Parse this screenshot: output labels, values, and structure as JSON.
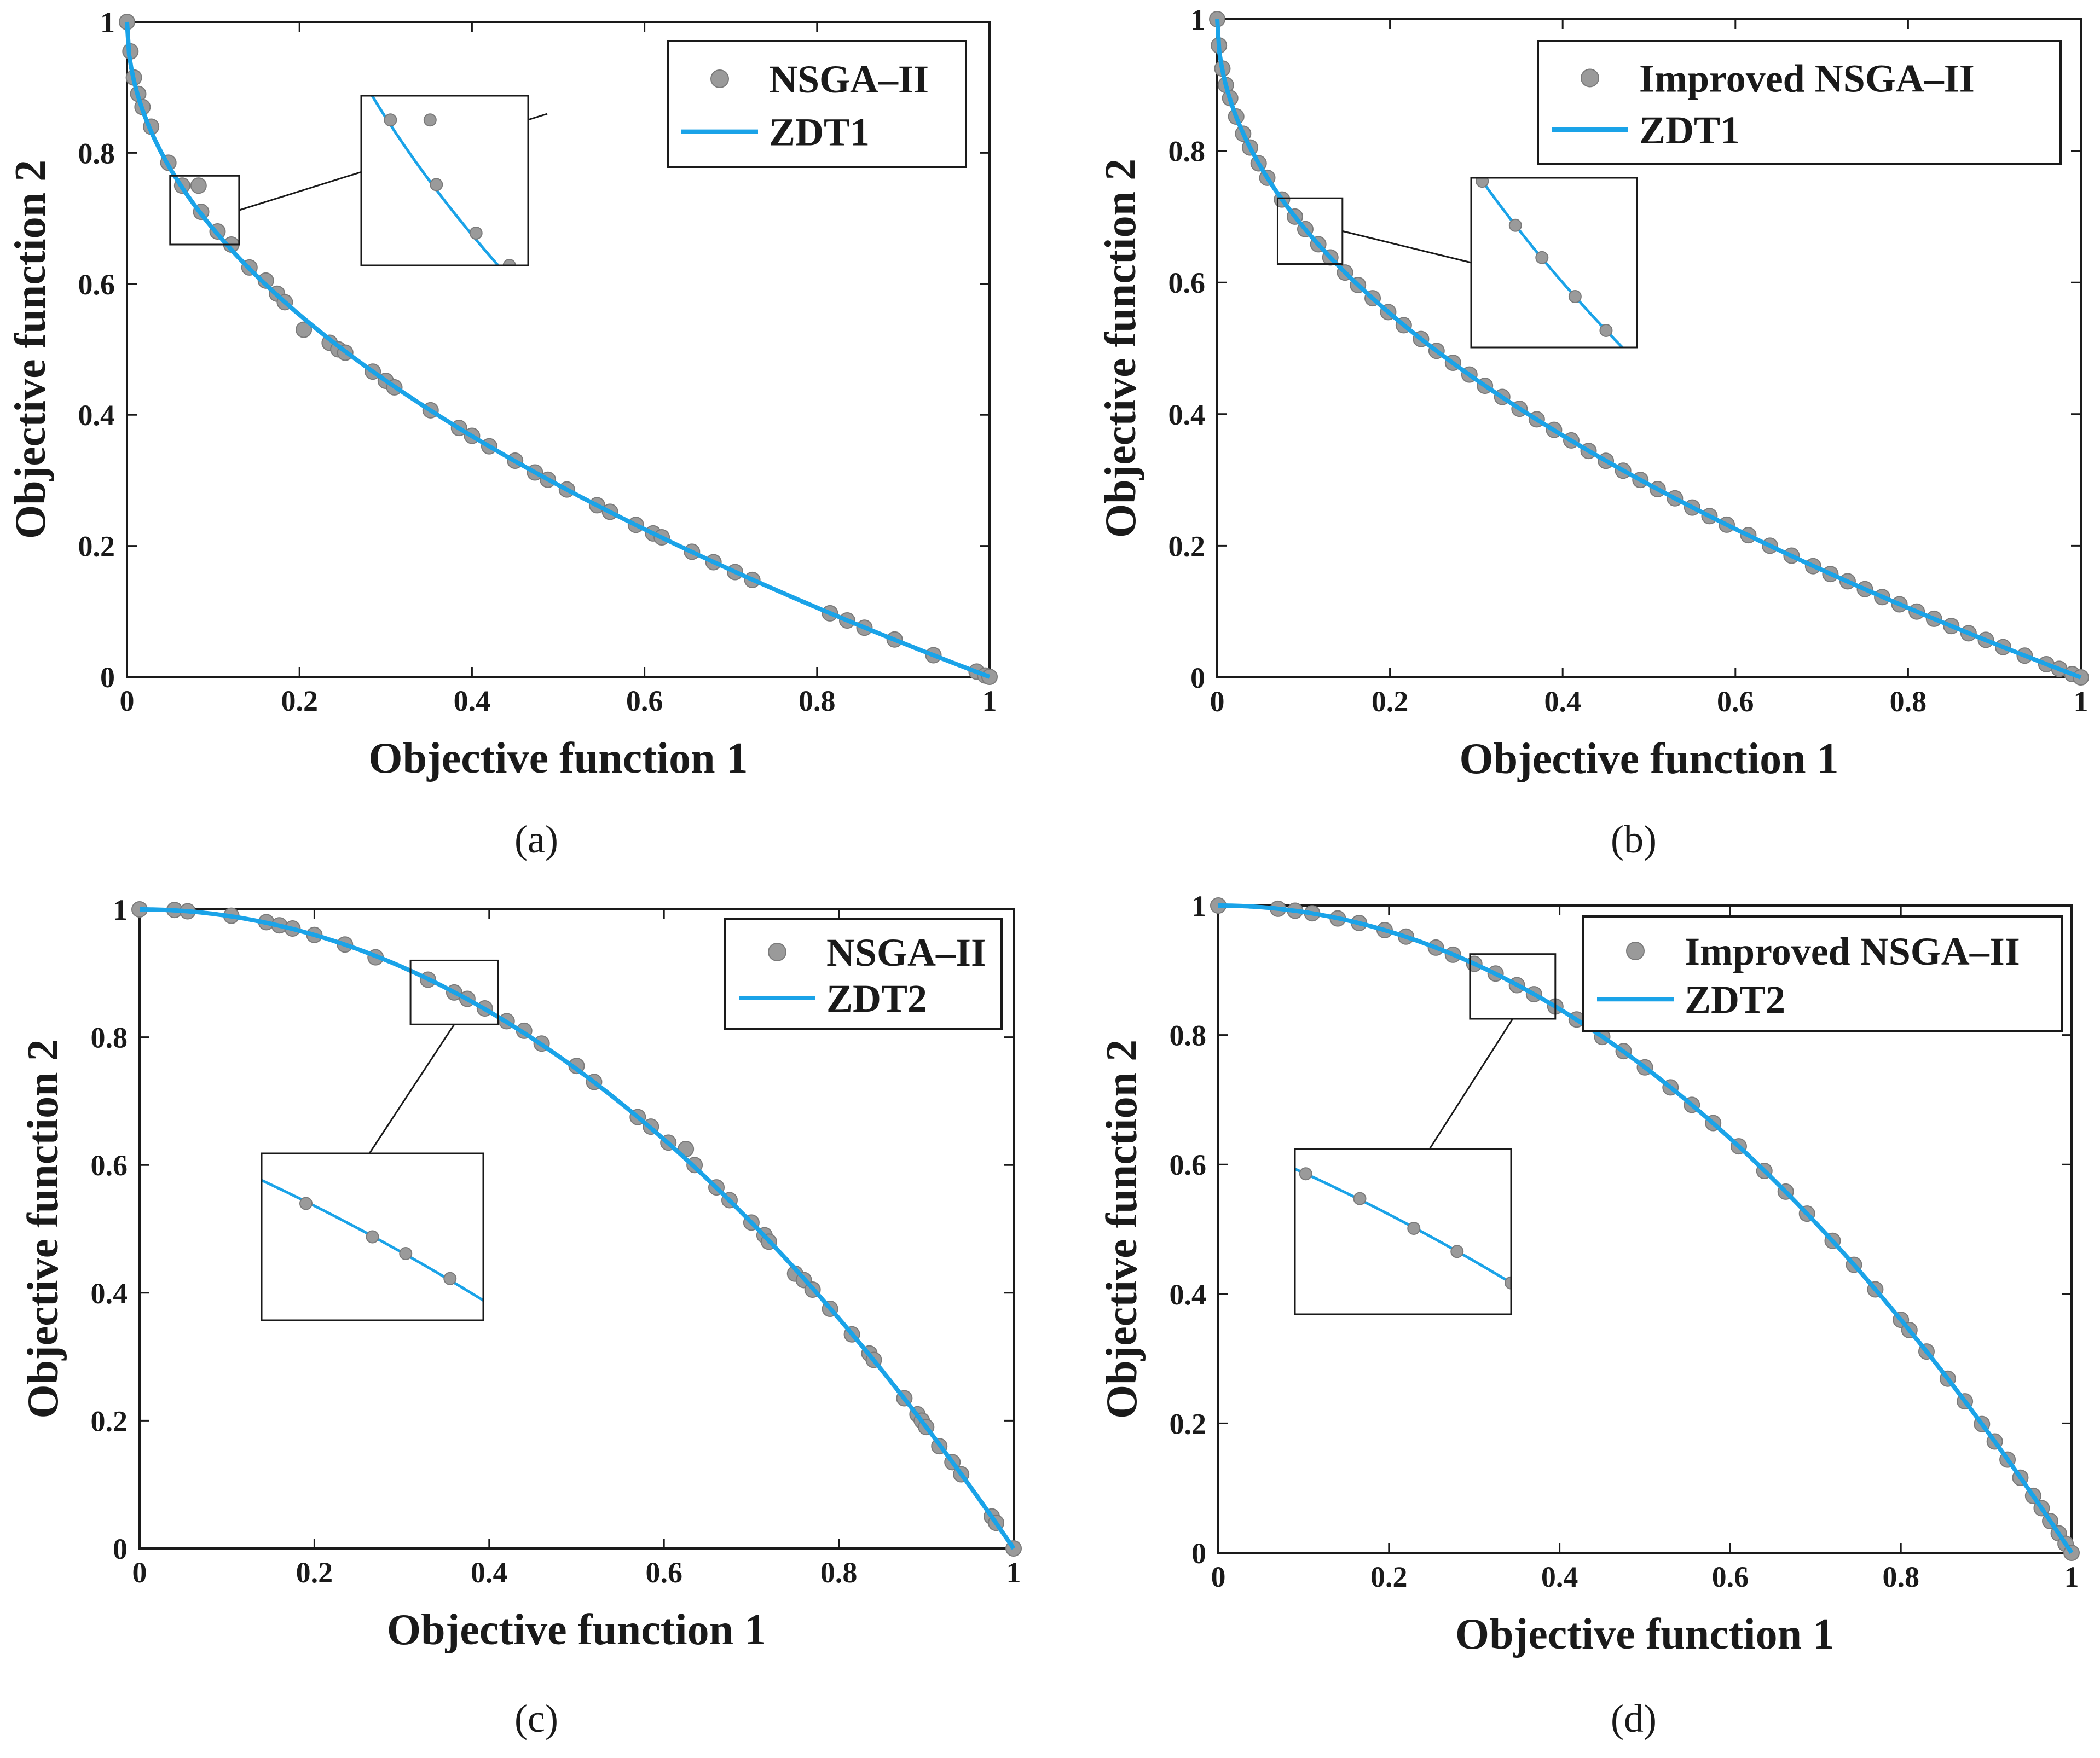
{
  "figure": {
    "colors": {
      "curve": "#1aa3e8",
      "marker_fill": "#9a9a9a",
      "marker_stroke": "#7a7a7a",
      "axes": "#1a1a1a",
      "background": "#ffffff"
    }
  },
  "chart_data": [
    {
      "id": "a",
      "type": "scatter",
      "caption": "(a)",
      "xlabel": "Objective function 1",
      "ylabel": "Objective function 2",
      "xlim": [
        0,
        1
      ],
      "ylim": [
        0,
        1
      ],
      "xticks": [
        "0",
        "0.2",
        "0.4",
        "0.6",
        "0.8",
        "1"
      ],
      "yticks": [
        "0",
        "0.2",
        "0.4",
        "0.6",
        "0.8",
        "1"
      ],
      "legend": {
        "position": "top-right",
        "entries": [
          "NSGA–II",
          "ZDT1"
        ]
      },
      "curve": {
        "name": "ZDT1",
        "function": "1 - sqrt(x)"
      },
      "inset": {
        "x_range": [
          0.05,
          0.13
        ],
        "y_range": [
          0.66,
          0.765
        ]
      },
      "series": [
        {
          "name": "NSGA–II",
          "points": [
            [
              0,
              1
            ],
            [
              0.004,
              0.955
            ],
            [
              0.008,
              0.915
            ],
            [
              0.013,
              0.89
            ],
            [
              0.018,
              0.87
            ],
            [
              0.028,
              0.84
            ],
            [
              0.048,
              0.785
            ],
            [
              0.064,
              0.75
            ],
            [
              0.083,
              0.75
            ],
            [
              0.086,
              0.71
            ],
            [
              0.105,
              0.68
            ],
            [
              0.121,
              0.66
            ],
            [
              0.142,
              0.625
            ],
            [
              0.161,
              0.605
            ],
            [
              0.174,
              0.585
            ],
            [
              0.183,
              0.572
            ],
            [
              0.205,
              0.53
            ],
            [
              0.235,
              0.51
            ],
            [
              0.245,
              0.5
            ],
            [
              0.253,
              0.495
            ],
            [
              0.285,
              0.466
            ],
            [
              0.3,
              0.452
            ],
            [
              0.31,
              0.442
            ],
            [
              0.352,
              0.407
            ],
            [
              0.385,
              0.38
            ],
            [
              0.4,
              0.368
            ],
            [
              0.42,
              0.352
            ],
            [
              0.45,
              0.33
            ],
            [
              0.473,
              0.312
            ],
            [
              0.488,
              0.301
            ],
            [
              0.51,
              0.286
            ],
            [
              0.545,
              0.262
            ],
            [
              0.56,
              0.252
            ],
            [
              0.59,
              0.232
            ],
            [
              0.61,
              0.219
            ],
            [
              0.62,
              0.213
            ],
            [
              0.655,
              0.191
            ],
            [
              0.68,
              0.175
            ],
            [
              0.705,
              0.16
            ],
            [
              0.725,
              0.148
            ],
            [
              0.815,
              0.097
            ],
            [
              0.835,
              0.086
            ],
            [
              0.855,
              0.075
            ],
            [
              0.89,
              0.057
            ],
            [
              0.935,
              0.033
            ],
            [
              0.985,
              0.008
            ],
            [
              0.995,
              0.002
            ],
            [
              1,
              0
            ]
          ]
        }
      ]
    },
    {
      "id": "b",
      "type": "scatter",
      "caption": "(b)",
      "xlabel": "Objective function 1",
      "ylabel": "Objective function 2",
      "xlim": [
        0,
        1
      ],
      "ylim": [
        0,
        1
      ],
      "xticks": [
        "0",
        "0.2",
        "0.4",
        "0.6",
        "0.8",
        "1"
      ],
      "yticks": [
        "0",
        "0.2",
        "0.4",
        "0.6",
        "0.8",
        "1"
      ],
      "legend": {
        "position": "top-right",
        "entries": [
          "Improved NSGA–II",
          "ZDT1"
        ]
      },
      "curve": {
        "name": "ZDT1",
        "function": "1 - sqrt(x)"
      },
      "inset": {
        "x_range": [
          0.07,
          0.145
        ],
        "y_range": [
          0.628,
          0.728
        ]
      },
      "series": [
        {
          "name": "Improved NSGA–II",
          "points": [
            [
              0,
              1
            ],
            [
              0.002,
              0.96
            ],
            [
              0.006,
              0.925
            ],
            [
              0.01,
              0.9
            ],
            [
              0.015,
              0.88
            ],
            [
              0.022,
              0.852
            ],
            [
              0.03,
              0.826
            ],
            [
              0.038,
              0.805
            ],
            [
              0.048,
              0.781
            ],
            [
              0.058,
              0.759
            ],
            [
              0.075,
              0.726
            ],
            [
              0.09,
              0.7
            ],
            [
              0.102,
              0.681
            ],
            [
              0.117,
              0.658
            ],
            [
              0.131,
              0.638
            ],
            [
              0.148,
              0.615
            ],
            [
              0.163,
              0.596
            ],
            [
              0.18,
              0.576
            ],
            [
              0.198,
              0.555
            ],
            [
              0.216,
              0.535
            ],
            [
              0.236,
              0.514
            ],
            [
              0.254,
              0.496
            ],
            [
              0.273,
              0.478
            ],
            [
              0.292,
              0.46
            ],
            [
              0.31,
              0.443
            ],
            [
              0.33,
              0.426
            ],
            [
              0.35,
              0.408
            ],
            [
              0.37,
              0.392
            ],
            [
              0.39,
              0.376
            ],
            [
              0.41,
              0.36
            ],
            [
              0.43,
              0.344
            ],
            [
              0.45,
              0.329
            ],
            [
              0.47,
              0.314
            ],
            [
              0.49,
              0.3
            ],
            [
              0.51,
              0.286
            ],
            [
              0.53,
              0.272
            ],
            [
              0.55,
              0.258
            ],
            [
              0.57,
              0.245
            ],
            [
              0.59,
              0.232
            ],
            [
              0.615,
              0.216
            ],
            [
              0.64,
              0.2
            ],
            [
              0.665,
              0.185
            ],
            [
              0.69,
              0.169
            ],
            [
              0.71,
              0.157
            ],
            [
              0.73,
              0.146
            ],
            [
              0.75,
              0.134
            ],
            [
              0.77,
              0.122
            ],
            [
              0.79,
              0.111
            ],
            [
              0.81,
              0.1
            ],
            [
              0.83,
              0.089
            ],
            [
              0.85,
              0.078
            ],
            [
              0.87,
              0.067
            ],
            [
              0.89,
              0.057
            ],
            [
              0.91,
              0.046
            ],
            [
              0.935,
              0.033
            ],
            [
              0.96,
              0.02
            ],
            [
              0.975,
              0.013
            ],
            [
              0.99,
              0.005
            ],
            [
              1,
              0
            ]
          ]
        }
      ]
    },
    {
      "id": "c",
      "type": "scatter",
      "caption": "(c)",
      "xlabel": "Objective function 1",
      "ylabel": "Objective function 2",
      "xlim": [
        0,
        1
      ],
      "ylim": [
        0,
        1
      ],
      "xticks": [
        "0",
        "0.2",
        "0.4",
        "0.6",
        "0.8",
        "1"
      ],
      "yticks": [
        "0",
        "0.2",
        "0.4",
        "0.6",
        "0.8",
        "1"
      ],
      "legend": {
        "position": "top-right",
        "entries": [
          "NSGA–II",
          "ZDT2"
        ]
      },
      "curve": {
        "name": "ZDT2",
        "function": "1 - x^2"
      },
      "inset": {
        "x_range": [
          0.31,
          0.41
        ],
        "y_range": [
          0.82,
          0.92
        ]
      },
      "series": [
        {
          "name": "NSGA–II",
          "points": [
            [
              0,
              1
            ],
            [
              0.04,
              0.999
            ],
            [
              0.055,
              0.997
            ],
            [
              0.105,
              0.99
            ],
            [
              0.145,
              0.98
            ],
            [
              0.16,
              0.975
            ],
            [
              0.175,
              0.97
            ],
            [
              0.2,
              0.96
            ],
            [
              0.235,
              0.945
            ],
            [
              0.27,
              0.925
            ],
            [
              0.33,
              0.89
            ],
            [
              0.36,
              0.87
            ],
            [
              0.375,
              0.86
            ],
            [
              0.395,
              0.845
            ],
            [
              0.42,
              0.825
            ],
            [
              0.44,
              0.81
            ],
            [
              0.46,
              0.79
            ],
            [
              0.5,
              0.755
            ],
            [
              0.52,
              0.73
            ],
            [
              0.57,
              0.675
            ],
            [
              0.585,
              0.66
            ],
            [
              0.605,
              0.635
            ],
            [
              0.625,
              0.625
            ],
            [
              0.635,
              0.6
            ],
            [
              0.66,
              0.565
            ],
            [
              0.675,
              0.545
            ],
            [
              0.7,
              0.51
            ],
            [
              0.715,
              0.49
            ],
            [
              0.72,
              0.48
            ],
            [
              0.75,
              0.43
            ],
            [
              0.76,
              0.42
            ],
            [
              0.77,
              0.405
            ],
            [
              0.79,
              0.375
            ],
            [
              0.815,
              0.335
            ],
            [
              0.835,
              0.305
            ],
            [
              0.84,
              0.295
            ],
            [
              0.875,
              0.235
            ],
            [
              0.89,
              0.21
            ],
            [
              0.895,
              0.2
            ],
            [
              0.9,
              0.19
            ],
            [
              0.915,
              0.16
            ],
            [
              0.93,
              0.135
            ],
            [
              0.94,
              0.116
            ],
            [
              0.975,
              0.05
            ],
            [
              0.98,
              0.04
            ],
            [
              1,
              0
            ]
          ]
        }
      ]
    },
    {
      "id": "d",
      "type": "scatter",
      "caption": "(d)",
      "xlabel": "Objective function 1",
      "ylabel": "Objective function 2",
      "xlim": [
        0,
        1
      ],
      "ylim": [
        0,
        1
      ],
      "xticks": [
        "0",
        "0.2",
        "0.4",
        "0.6",
        "0.8",
        "1"
      ],
      "yticks": [
        "0",
        "0.2",
        "0.4",
        "0.6",
        "0.8",
        "1"
      ],
      "legend": {
        "position": "top-right",
        "entries": [
          "Improved NSGA–II",
          "ZDT2"
        ]
      },
      "curve": {
        "name": "ZDT2",
        "function": "1 - x^2"
      },
      "inset": {
        "x_range": [
          0.295,
          0.395
        ],
        "y_range": [
          0.825,
          0.925
        ]
      },
      "series": [
        {
          "name": "Improved NSGA–II",
          "points": [
            [
              0,
              1
            ],
            [
              0.07,
              0.995
            ],
            [
              0.09,
              0.992
            ],
            [
              0.11,
              0.988
            ],
            [
              0.14,
              0.98
            ],
            [
              0.165,
              0.973
            ],
            [
              0.195,
              0.962
            ],
            [
              0.22,
              0.952
            ],
            [
              0.255,
              0.935
            ],
            [
              0.275,
              0.924
            ],
            [
              0.3,
              0.91
            ],
            [
              0.325,
              0.895
            ],
            [
              0.35,
              0.877
            ],
            [
              0.37,
              0.863
            ],
            [
              0.395,
              0.844
            ],
            [
              0.42,
              0.824
            ],
            [
              0.45,
              0.797
            ],
            [
              0.475,
              0.775
            ],
            [
              0.5,
              0.75
            ],
            [
              0.53,
              0.719
            ],
            [
              0.555,
              0.692
            ],
            [
              0.58,
              0.664
            ],
            [
              0.61,
              0.628
            ],
            [
              0.64,
              0.59
            ],
            [
              0.665,
              0.558
            ],
            [
              0.69,
              0.524
            ],
            [
              0.72,
              0.482
            ],
            [
              0.745,
              0.445
            ],
            [
              0.77,
              0.407
            ],
            [
              0.8,
              0.36
            ],
            [
              0.81,
              0.344
            ],
            [
              0.83,
              0.311
            ],
            [
              0.855,
              0.269
            ],
            [
              0.875,
              0.234
            ],
            [
              0.895,
              0.199
            ],
            [
              0.91,
              0.172
            ],
            [
              0.925,
              0.144
            ],
            [
              0.94,
              0.116
            ],
            [
              0.955,
              0.088
            ],
            [
              0.965,
              0.069
            ],
            [
              0.975,
              0.049
            ],
            [
              0.985,
              0.03
            ],
            [
              0.993,
              0.014
            ],
            [
              1,
              0
            ]
          ]
        }
      ]
    }
  ]
}
